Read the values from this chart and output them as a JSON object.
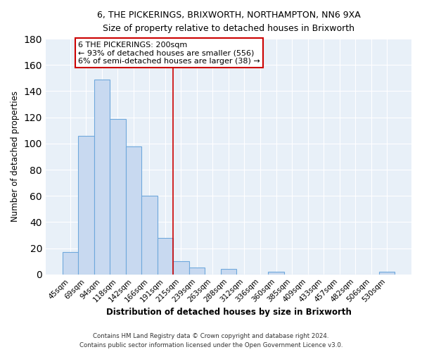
{
  "title1": "6, THE PICKERINGS, BRIXWORTH, NORTHAMPTON, NN6 9XA",
  "title2": "Size of property relative to detached houses in Brixworth",
  "xlabel": "Distribution of detached houses by size in Brixworth",
  "ylabel": "Number of detached properties",
  "bar_labels": [
    "45sqm",
    "69sqm",
    "94sqm",
    "118sqm",
    "142sqm",
    "166sqm",
    "191sqm",
    "215sqm",
    "239sqm",
    "263sqm",
    "288sqm",
    "312sqm",
    "336sqm",
    "360sqm",
    "385sqm",
    "409sqm",
    "433sqm",
    "457sqm",
    "482sqm",
    "506sqm",
    "530sqm"
  ],
  "bar_values": [
    17,
    106,
    149,
    119,
    98,
    60,
    28,
    10,
    5,
    0,
    4,
    0,
    0,
    2,
    0,
    0,
    0,
    0,
    0,
    0,
    2
  ],
  "bar_color": "#c8d9f0",
  "bar_edge_color": "#6fa8dc",
  "ylim": [
    0,
    180
  ],
  "yticks": [
    0,
    20,
    40,
    60,
    80,
    100,
    120,
    140,
    160,
    180
  ],
  "vline_x_index": 6.5,
  "vline_color": "#cc0000",
  "annotation_title": "6 THE PICKERINGS: 200sqm",
  "annotation_line1": "← 93% of detached houses are smaller (556)",
  "annotation_line2": "6% of semi-detached houses are larger (38) →",
  "annotation_box_color": "#ffffff",
  "annotation_box_edge": "#cc0000",
  "footer1": "Contains HM Land Registry data © Crown copyright and database right 2024.",
  "footer2": "Contains public sector information licensed under the Open Government Licence v3.0.",
  "bg_color": "#e8f0f8"
}
